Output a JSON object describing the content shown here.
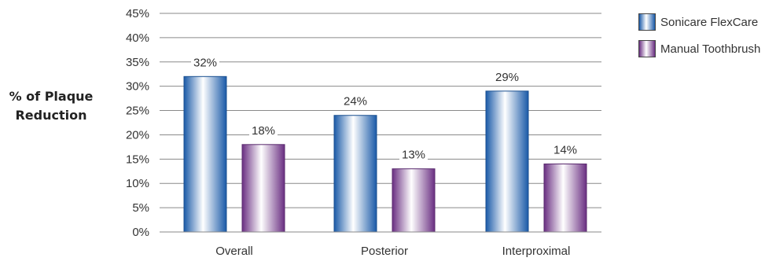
{
  "chart_data": {
    "type": "bar",
    "title": "",
    "xlabel": "",
    "ylabel_lines": [
      "% of Plaque",
      "Reduction"
    ],
    "categories": [
      "Overall",
      "Posterior",
      "Interproximal"
    ],
    "series": [
      {
        "name": "Sonicare FlexCare",
        "values": [
          32,
          24,
          29
        ],
        "data_labels": [
          "32%",
          "24%",
          "29%"
        ],
        "color": "#1f6fb8"
      },
      {
        "name": "Manual Toothbrush",
        "values": [
          18,
          13,
          14
        ],
        "data_labels": [
          "18%",
          "13%",
          "14%"
        ],
        "color": "#7a3f8c"
      }
    ],
    "ylim": [
      0,
      45
    ],
    "y_ticks": [
      0,
      5,
      10,
      15,
      20,
      25,
      30,
      35,
      40,
      45
    ],
    "y_tick_labels": [
      "0%",
      "5%",
      "10%",
      "15%",
      "20%",
      "25%",
      "30%",
      "35%",
      "40%",
      "45%"
    ],
    "grid": true,
    "legend_position": "top-right"
  }
}
